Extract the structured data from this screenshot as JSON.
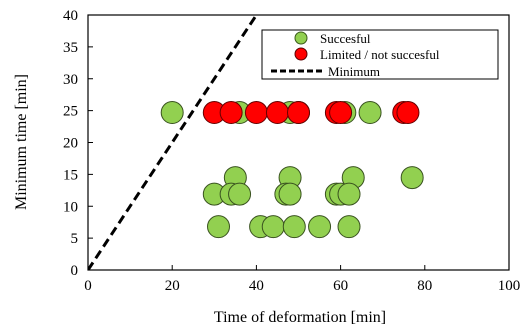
{
  "chart_data": {
    "type": "scatter",
    "xlabel": "Time of deformation [min]",
    "ylabel": "Minimum time [min]",
    "xlim": [
      0,
      100
    ],
    "ylim": [
      0,
      40
    ],
    "x_ticks": [
      0,
      20,
      40,
      60,
      80,
      100
    ],
    "y_ticks": [
      0,
      5,
      10,
      15,
      20,
      25,
      30,
      35,
      40
    ],
    "grid": false,
    "legend_position": "top-right",
    "series": [
      {
        "name": "Succesful",
        "kind": "marker",
        "color": "#92d050",
        "points": [
          [
            20,
            24.7
          ],
          [
            36,
            24.7
          ],
          [
            48,
            24.7
          ],
          [
            50,
            24.7
          ],
          [
            61,
            24.7
          ],
          [
            67,
            24.7
          ],
          [
            35,
            14.5
          ],
          [
            48,
            14.5
          ],
          [
            63,
            14.5
          ],
          [
            77,
            14.5
          ],
          [
            30,
            11.9
          ],
          [
            34,
            11.9
          ],
          [
            36,
            11.9
          ],
          [
            47,
            11.9
          ],
          [
            48,
            11.9
          ],
          [
            59,
            11.9
          ],
          [
            60,
            11.9
          ],
          [
            62,
            11.9
          ],
          [
            31,
            6.8
          ],
          [
            41,
            6.8
          ],
          [
            44,
            6.8
          ],
          [
            49,
            6.8
          ],
          [
            55,
            6.8
          ],
          [
            62,
            6.8
          ]
        ]
      },
      {
        "name": "Limited / not succesful",
        "kind": "marker",
        "color": "#ff0000",
        "points": [
          [
            30,
            24.7
          ],
          [
            34,
            24.7
          ],
          [
            40,
            24.7
          ],
          [
            45,
            24.7
          ],
          [
            50,
            24.7
          ],
          [
            59,
            24.7
          ],
          [
            60,
            24.7
          ],
          [
            75,
            24.7
          ],
          [
            76,
            24.7
          ]
        ]
      },
      {
        "name": "Minimum",
        "kind": "line",
        "color": "#000000",
        "dash": "dashed",
        "points": [
          [
            0,
            0
          ],
          [
            40,
            40
          ]
        ]
      }
    ]
  }
}
